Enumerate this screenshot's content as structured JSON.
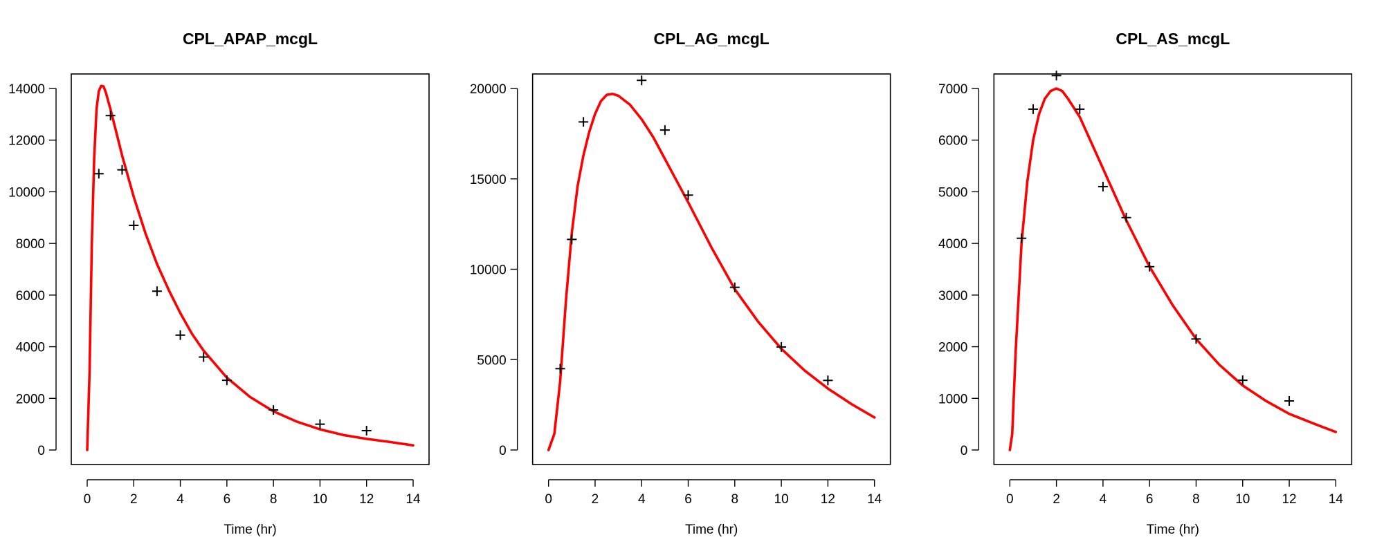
{
  "colors": {
    "fit_line": "#ff0000",
    "observations": "#000000",
    "background": "#ffffff"
  },
  "chart_data": [
    {
      "type": "line",
      "title": "CPL_APAP_mcgL",
      "xlabel": "Time (hr)",
      "ylabel": "",
      "xlim": [
        0,
        14
      ],
      "ylim": [
        0,
        14000
      ],
      "xticks": [
        0,
        2,
        4,
        6,
        8,
        10,
        12,
        14
      ],
      "yticks": [
        0,
        2000,
        4000,
        6000,
        8000,
        10000,
        12000,
        14000
      ],
      "grid": false,
      "observed": {
        "marker": "plus",
        "x": [
          0.5,
          1,
          1.5,
          2,
          3,
          4,
          5,
          6,
          8,
          10,
          12
        ],
        "y": [
          10700,
          12950,
          10850,
          8700,
          6150,
          4450,
          3600,
          2700,
          1550,
          1000,
          750
        ]
      },
      "fitted": {
        "x": [
          0,
          0.1,
          0.2,
          0.3,
          0.4,
          0.5,
          0.6,
          0.7,
          0.8,
          1.0,
          1.25,
          1.5,
          2,
          2.5,
          3,
          3.5,
          4,
          4.5,
          5,
          6,
          7,
          8,
          9,
          10,
          11,
          12,
          13,
          14
        ],
        "y": [
          0,
          3000,
          8000,
          11300,
          13200,
          13900,
          14100,
          14080,
          13850,
          13200,
          12300,
          11400,
          9800,
          8400,
          7200,
          6200,
          5300,
          4500,
          3850,
          2800,
          2050,
          1500,
          1100,
          800,
          580,
          430,
          310,
          180
        ]
      }
    },
    {
      "type": "line",
      "title": "CPL_AG_mcgL",
      "xlabel": "Time (hr)",
      "ylabel": "",
      "xlim": [
        0,
        14
      ],
      "ylim": [
        0,
        20000
      ],
      "xticks": [
        0,
        2,
        4,
        6,
        8,
        10,
        12,
        14
      ],
      "yticks": [
        0,
        5000,
        10000,
        15000,
        20000
      ],
      "grid": false,
      "observed": {
        "marker": "plus",
        "x": [
          0.5,
          1,
          1.5,
          4,
          5,
          6,
          8,
          10,
          12
        ],
        "y": [
          4500,
          11650,
          18150,
          20450,
          17700,
          14100,
          9000,
          5700,
          3850
        ]
      },
      "fitted": {
        "x": [
          0,
          0.25,
          0.5,
          0.75,
          1.0,
          1.25,
          1.5,
          1.75,
          2.0,
          2.25,
          2.5,
          2.75,
          3.0,
          3.5,
          4,
          4.5,
          5,
          6,
          7,
          8,
          9,
          10,
          11,
          12,
          13,
          14
        ],
        "y": [
          0,
          900,
          3800,
          8300,
          12000,
          14600,
          16300,
          17600,
          18600,
          19300,
          19650,
          19700,
          19600,
          19100,
          18300,
          17300,
          16100,
          13700,
          11200,
          8900,
          7100,
          5600,
          4400,
          3400,
          2550,
          1800
        ]
      }
    },
    {
      "type": "line",
      "title": "CPL_AS_mcgL",
      "xlabel": "Time (hr)",
      "ylabel": "",
      "xlim": [
        0,
        14
      ],
      "ylim": [
        0,
        7000
      ],
      "xticks": [
        0,
        2,
        4,
        6,
        8,
        10,
        12,
        14
      ],
      "yticks": [
        0,
        1000,
        2000,
        3000,
        4000,
        5000,
        6000,
        7000
      ],
      "grid": false,
      "observed": {
        "marker": "plus",
        "x": [
          0.5,
          1,
          2,
          3,
          4,
          5,
          6,
          8,
          10,
          12
        ],
        "y": [
          4100,
          6600,
          7250,
          6600,
          5100,
          4500,
          3550,
          2150,
          1350,
          950
        ]
      },
      "fitted": {
        "x": [
          0,
          0.1,
          0.25,
          0.5,
          0.75,
          1.0,
          1.25,
          1.5,
          1.75,
          2.0,
          2.25,
          2.5,
          3,
          3.5,
          4,
          4.5,
          5,
          6,
          7,
          8,
          9,
          10,
          11,
          12,
          13,
          14
        ],
        "y": [
          0,
          300,
          1900,
          4000,
          5200,
          6000,
          6500,
          6800,
          6950,
          7000,
          6950,
          6800,
          6450,
          5950,
          5450,
          4950,
          4450,
          3550,
          2800,
          2150,
          1650,
          1250,
          950,
          700,
          520,
          350
        ]
      }
    }
  ]
}
